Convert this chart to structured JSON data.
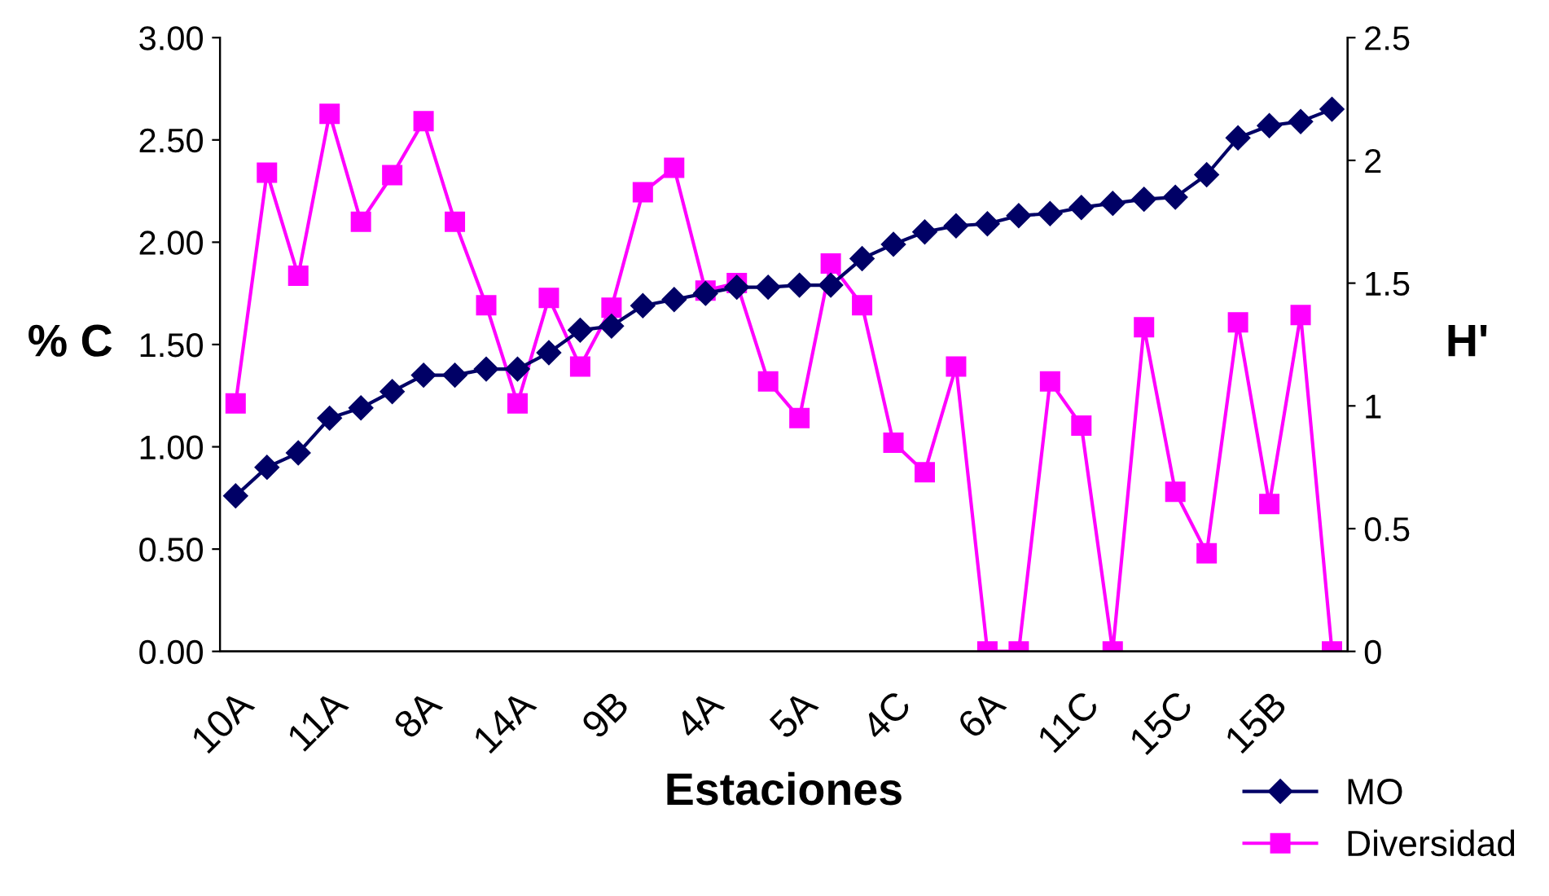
{
  "chart_data": {
    "type": "line",
    "xlabel": "Estaciones",
    "ylabel": "% C",
    "y2label": "H'",
    "categories": [
      "10A",
      null,
      null,
      "11A",
      null,
      null,
      "8A",
      null,
      null,
      "14A",
      null,
      null,
      "9B",
      null,
      null,
      "4A",
      null,
      null,
      "5A",
      null,
      null,
      "4C",
      null,
      null,
      "6A",
      null,
      null,
      "11C",
      null,
      null,
      "15C",
      null,
      null,
      "15B",
      null,
      null
    ],
    "series": [
      {
        "name": "MO",
        "color": "#000066",
        "marker": "diamond",
        "values": [
          0.76,
          0.9,
          0.97,
          1.14,
          1.19,
          1.27,
          1.35,
          1.35,
          1.38,
          1.38,
          1.46,
          1.57,
          1.59,
          1.69,
          1.72,
          1.75,
          1.78,
          1.78,
          1.79,
          1.79,
          1.92,
          1.99,
          2.05,
          2.08,
          2.09,
          2.13,
          2.14,
          2.17,
          2.19,
          2.21,
          2.22,
          2.33,
          2.51,
          2.57,
          2.59,
          2.65
        ]
      },
      {
        "name": "Diversidad",
        "color": "#ff00ff",
        "marker": "square",
        "axis": "y2",
        "values": [
          1.01,
          1.95,
          1.53,
          2.19,
          1.75,
          1.94,
          2.16,
          1.75,
          1.41,
          1.01,
          1.44,
          1.16,
          1.4,
          1.87,
          1.97,
          1.47,
          1.5,
          1.1,
          0.95,
          1.58,
          1.41,
          0.85,
          0.73,
          1.16,
          0,
          0,
          1.1,
          0.92,
          0,
          1.32,
          0.65,
          0.4,
          1.34,
          0.6,
          1.37,
          0
        ]
      }
    ],
    "ylim": [
      0,
      3
    ],
    "yticks": [
      {
        "value": 0,
        "label": "0.00"
      },
      {
        "value": 0.5,
        "label": "0.50"
      },
      {
        "value": 1,
        "label": "1.00"
      },
      {
        "value": 1.5,
        "label": "1.50"
      },
      {
        "value": 2,
        "label": "2.00"
      },
      {
        "value": 2.5,
        "label": "2.50"
      },
      {
        "value": 3,
        "label": "3.00"
      }
    ],
    "y2lim": [
      0,
      2.5
    ],
    "y2ticks": [
      0,
      0.5,
      1,
      1.5,
      2,
      2.5
    ],
    "grid": false,
    "legend": "bottom right",
    "line_style": "solid"
  }
}
